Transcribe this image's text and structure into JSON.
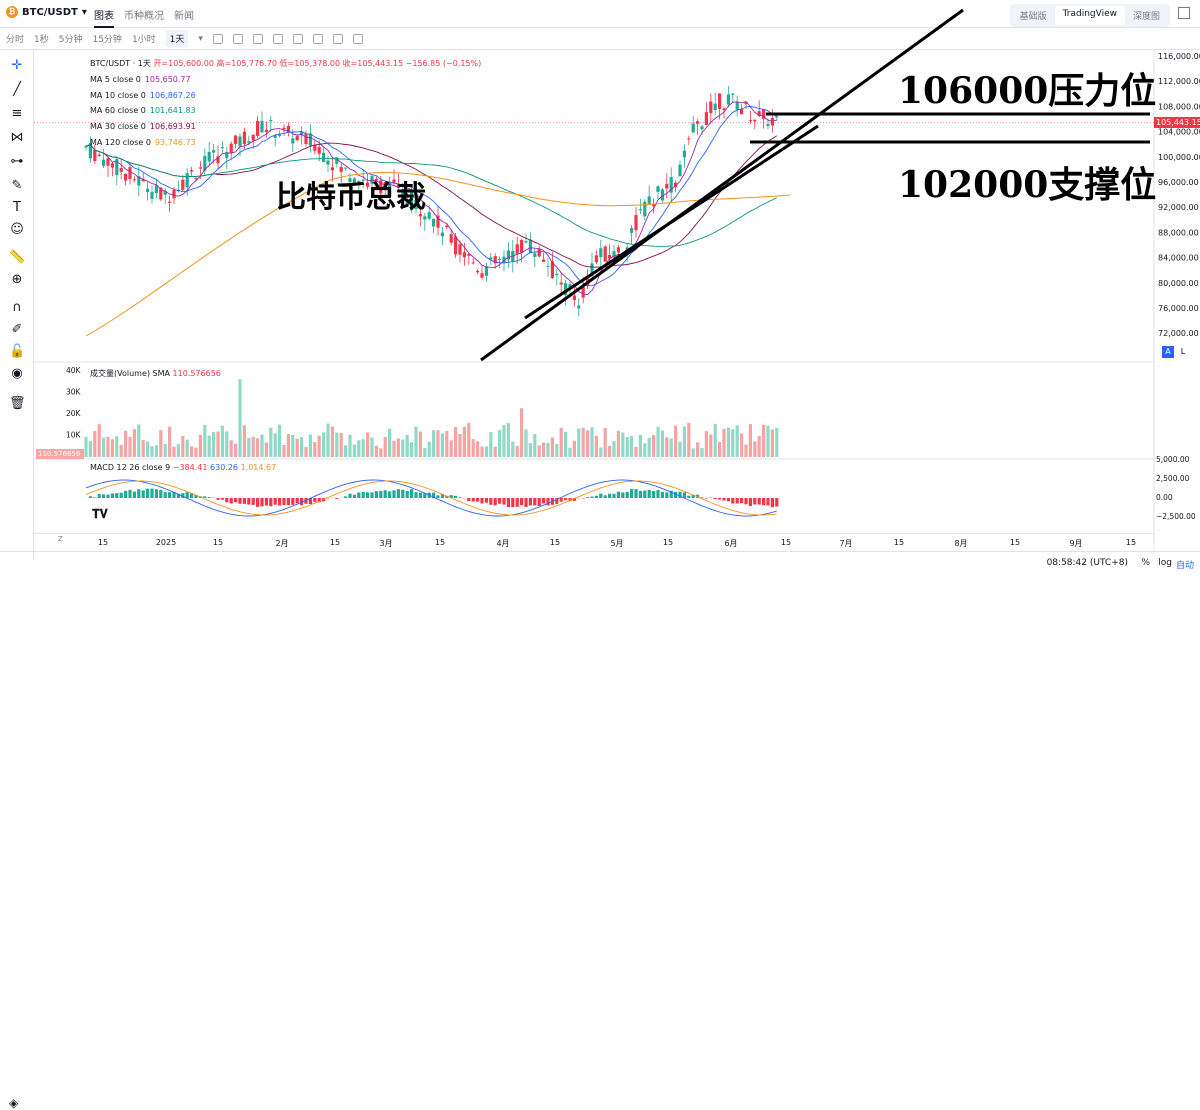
{
  "header": {
    "symbol": "BTC/USDT",
    "tabs": [
      "图表",
      "币种概况",
      "新闻"
    ],
    "views": [
      "基础版",
      "TradingView",
      "深度图"
    ]
  },
  "toolbar": {
    "intervals": [
      "分时",
      "1秒",
      "5分钟",
      "15分钟",
      "1小时",
      "1天"
    ],
    "active_interval": "1天"
  },
  "legend": {
    "title": "BTC/USDT · 1天",
    "ohlc": "开=105,600.00  高=105,776.70  低=105,378.00  收=105,443.15  −156.85 (−0.15%)",
    "ma": [
      {
        "label": "MA 5 close 0",
        "value": "105,650.77",
        "color": "#9c27b0"
      },
      {
        "label": "MA 10 close 0",
        "value": "106,867.26",
        "color": "#2962ff"
      },
      {
        "label": "MA 60 close 0",
        "value": "101,641.83",
        "color": "#089981"
      },
      {
        "label": "MA 30 close 0",
        "value": "106,693.91",
        "color": "#880e4f"
      },
      {
        "label": "MA 120 close 0",
        "value": "93,746.73",
        "color": "#f7931a"
      }
    ]
  },
  "volume": {
    "label": "成交量(Volume) SMA",
    "value": "110.576656",
    "tag": "110.576656"
  },
  "macd": {
    "label": "MACD 12 26 close 9",
    "v1": "−384.41",
    "v2": "630.26",
    "v3": "1,014.67"
  },
  "price_axis": [
    "116,000.00",
    "112,000.00",
    "108,000.00",
    "104,000.00",
    "100,000.00",
    "96,000.00",
    "92,000.00",
    "88,000.00",
    "84,000.00",
    "80,000.00",
    "76,000.00",
    "72,000.00"
  ],
  "last_price": "105,443.15",
  "vol_axis": [
    "40K",
    "30K",
    "20K",
    "10K"
  ],
  "macd_axis": [
    "5,000.00",
    "2,500.00",
    "0.00",
    "−2,500.00"
  ],
  "time_axis": [
    "15",
    "2025",
    "15",
    "2月",
    "15",
    "3月",
    "15",
    "4月",
    "15",
    "5月",
    "15",
    "6月",
    "15",
    "7月",
    "15",
    "8月",
    "15",
    "9月",
    "15"
  ],
  "annotations": {
    "resistance": "106000压力位",
    "support": "102000支撑位",
    "title": "比特币总裁"
  },
  "bottom": {
    "clock": "08:58:42 (UTC+8)",
    "percent": "%",
    "log": "log",
    "auto": "自动"
  },
  "chart_data": {
    "type": "candlestick",
    "ylim": [
      70000,
      118000
    ],
    "last": 105443.15
  }
}
